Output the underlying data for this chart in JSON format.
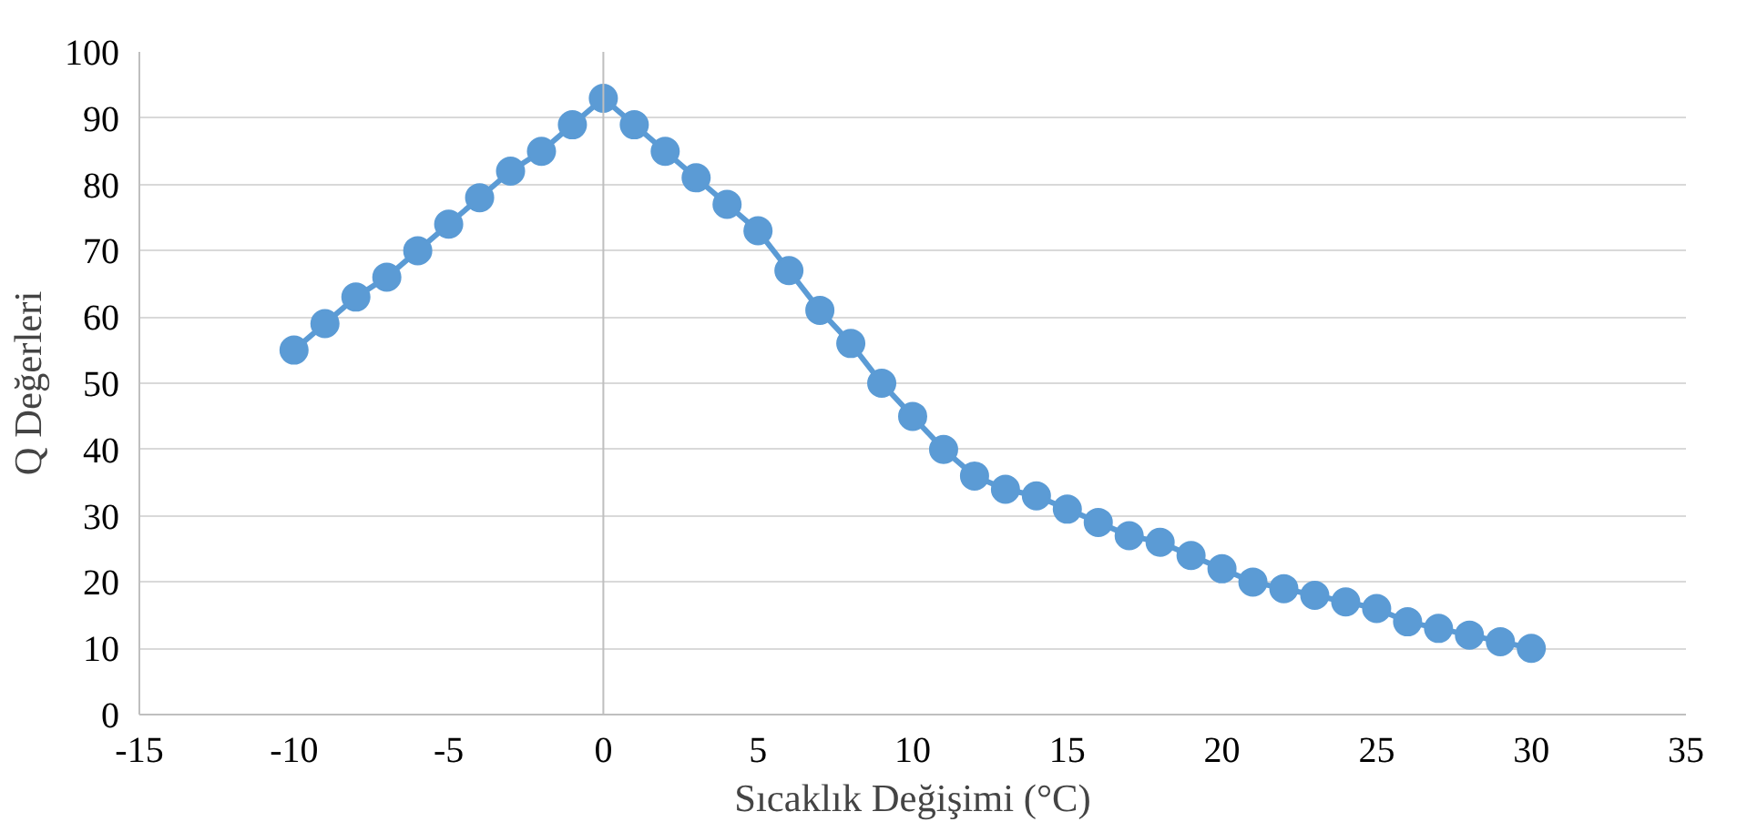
{
  "chart_data": {
    "type": "line",
    "xlabel": "Sıcaklık Değişimi (°C)",
    "ylabel": "Q Değerleri",
    "x": [
      -10,
      -9,
      -8,
      -7,
      -6,
      -5,
      -4,
      -3,
      -2,
      -1,
      0,
      1,
      2,
      3,
      4,
      5,
      6,
      7,
      8,
      9,
      10,
      11,
      12,
      13,
      14,
      15,
      16,
      17,
      18,
      19,
      20,
      21,
      22,
      23,
      24,
      25,
      26,
      27,
      28,
      29,
      30
    ],
    "series": [
      {
        "color": "#5b9bd5",
        "values": [
          55,
          59,
          63,
          66,
          70,
          74,
          78,
          82,
          85,
          89,
          93,
          89,
          85,
          81,
          77,
          73,
          67,
          61,
          56,
          50,
          45,
          40,
          36,
          34,
          33,
          31,
          29,
          27,
          26,
          24,
          22,
          20,
          19,
          18,
          17,
          16,
          14,
          13,
          12,
          11,
          10
        ]
      }
    ],
    "xlim": [
      -15,
      35
    ],
    "xticks": [
      -15,
      -10,
      -5,
      0,
      5,
      10,
      15,
      20,
      25,
      30,
      35
    ],
    "ylim": [
      0,
      100
    ],
    "yticks": [
      0,
      10,
      20,
      30,
      40,
      50,
      60,
      70,
      80,
      90,
      100
    ],
    "grid": "y",
    "marker": "circle",
    "line_style": "solid"
  }
}
